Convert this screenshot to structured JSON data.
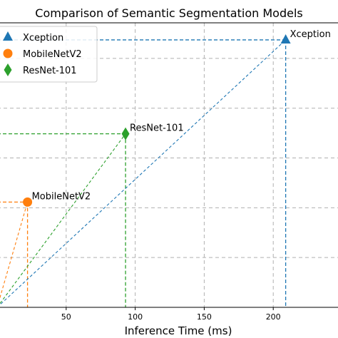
{
  "chart_data": {
    "type": "scatter",
    "title": "Comparison of Semantic Segmentation Models",
    "xlabel": "Inference Time (ms)",
    "xlim": [
      0,
      250
    ],
    "ylim": [
      0,
      1
    ],
    "xticks": [
      50,
      100,
      150,
      200
    ],
    "grid": true,
    "legend_position": "top-left",
    "series": [
      {
        "name": "Xception",
        "x": 209,
        "y": 0.94,
        "marker": "triangle",
        "color": "#1f77b4"
      },
      {
        "name": "MobileNetV2",
        "x": 22,
        "y": 0.37,
        "marker": "circle",
        "color": "#ff7f0e"
      },
      {
        "name": "ResNet-101",
        "x": 93,
        "y": 0.61,
        "marker": "diamond",
        "color": "#2ca02c"
      }
    ]
  }
}
